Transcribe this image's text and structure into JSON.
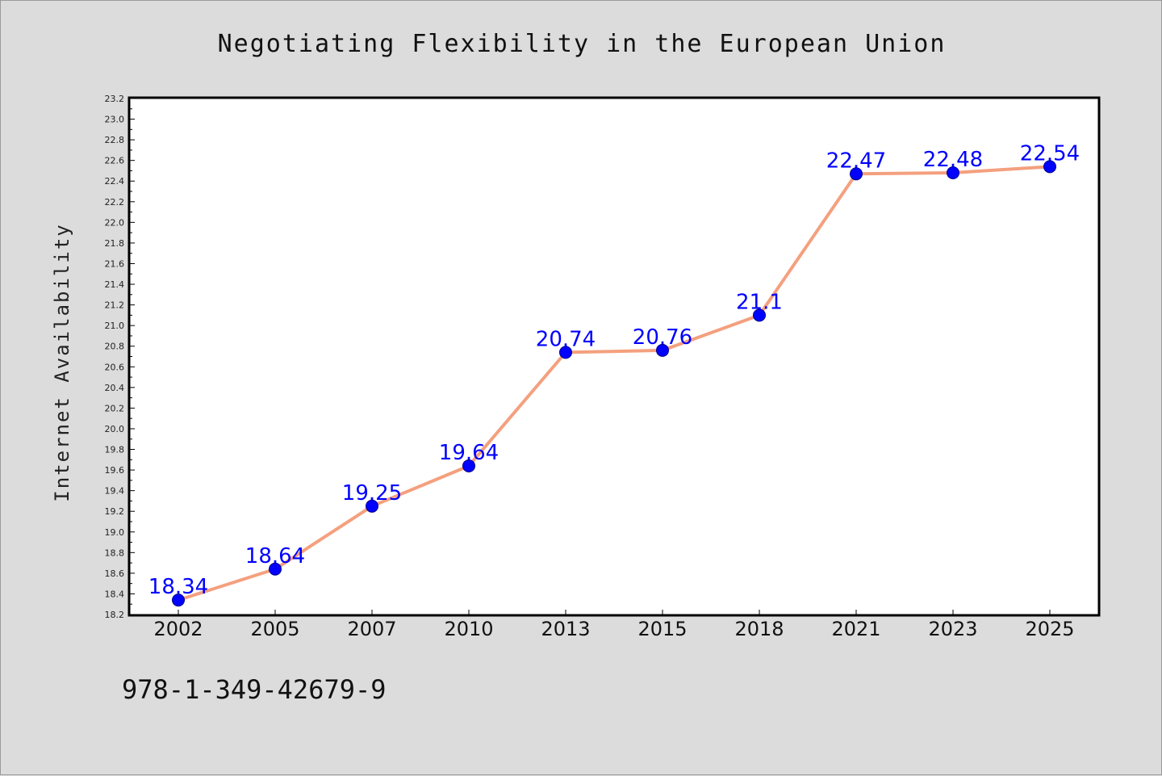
{
  "chart_data": {
    "type": "line",
    "title": "Negotiating Flexibility in the European Union",
    "xlabel": "",
    "ylabel": "Internet Availability",
    "categories": [
      "2002",
      "2005",
      "2007",
      "2010",
      "2013",
      "2015",
      "2018",
      "2021",
      "2023",
      "2025"
    ],
    "series": [
      {
        "values": [
          18.34,
          18.64,
          19.25,
          19.64,
          20.74,
          20.76,
          21.1,
          22.47,
          22.48,
          22.54
        ],
        "labels": [
          "18.34",
          "18.64",
          "19.25",
          "19.64",
          "20.74",
          "20.76",
          "21.1",
          "22.47",
          "22.48",
          "22.54"
        ]
      }
    ],
    "ylim": [
      18.2,
      23.2
    ],
    "yticks": [
      "18.2",
      "18.4",
      "18.6",
      "18.8",
      "19.0",
      "19.2",
      "19.4",
      "19.6",
      "19.8",
      "20.0",
      "20.2",
      "20.4",
      "20.6",
      "20.8",
      "21.0",
      "21.2",
      "21.4",
      "21.6",
      "21.8",
      "22.0",
      "22.2",
      "22.4",
      "22.6",
      "22.8",
      "23.0",
      "23.2"
    ],
    "grid": false,
    "line_color": "#f4a07e",
    "marker_color": "#0000ff",
    "label_color": "#0000ff",
    "background_color": "#dcdcdc",
    "plot_background_color": "#ffffff"
  },
  "footer": {
    "isbn": "978-1-349-42679-9"
  }
}
